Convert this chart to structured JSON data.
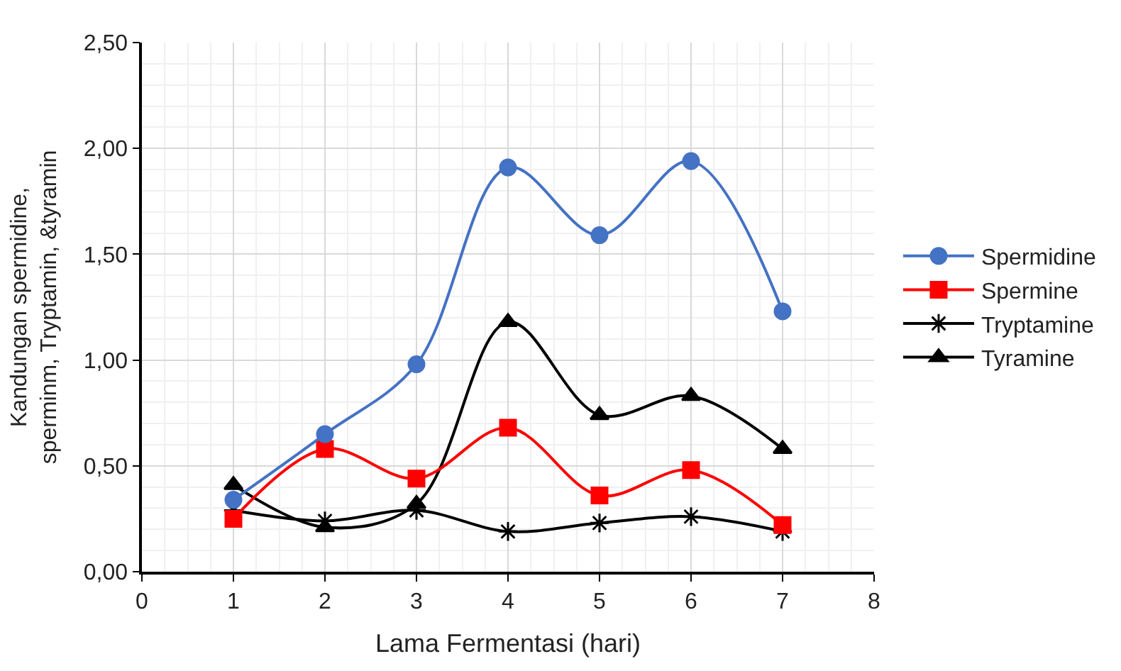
{
  "chart_data": {
    "type": "line",
    "xlabel": "Lama Fermentasi (hari)",
    "ylabel": "Kandungan spermidine, sperminm, Tryptamin, &tyramin",
    "x": [
      1,
      2,
      3,
      4,
      5,
      6,
      7
    ],
    "series": [
      {
        "name": "Spermidine",
        "color": "#4472c4",
        "marker": "circle",
        "values": [
          0.34,
          0.65,
          0.98,
          1.91,
          1.59,
          1.94,
          1.23
        ]
      },
      {
        "name": "Spermine",
        "color": "#ff0000",
        "marker": "square",
        "values": [
          0.25,
          0.58,
          0.44,
          0.68,
          0.36,
          0.48,
          0.22
        ]
      },
      {
        "name": "Tryptamine",
        "color": "#000000",
        "marker": "cross",
        "values": [
          0.29,
          0.24,
          0.29,
          0.19,
          0.23,
          0.26,
          0.19
        ]
      },
      {
        "name": "Tyramine",
        "color": "#000000",
        "marker": "triangle",
        "values": [
          0.41,
          0.21,
          0.32,
          1.18,
          0.74,
          0.83,
          0.58
        ]
      }
    ],
    "xlim": [
      0,
      8
    ],
    "xticks": [
      0,
      1,
      2,
      3,
      4,
      5,
      6,
      7,
      8
    ],
    "ylim": [
      0,
      2.5
    ],
    "yticks": [
      {
        "value": 0,
        "label": "0,00"
      },
      {
        "value": 0.5,
        "label": "0,50"
      },
      {
        "value": 1,
        "label": "1,00"
      },
      {
        "value": 1.5,
        "label": "1,50"
      },
      {
        "value": 2,
        "label": "2,00"
      },
      {
        "value": 2.5,
        "label": "2,50"
      }
    ],
    "grid": true,
    "legend": "right"
  }
}
